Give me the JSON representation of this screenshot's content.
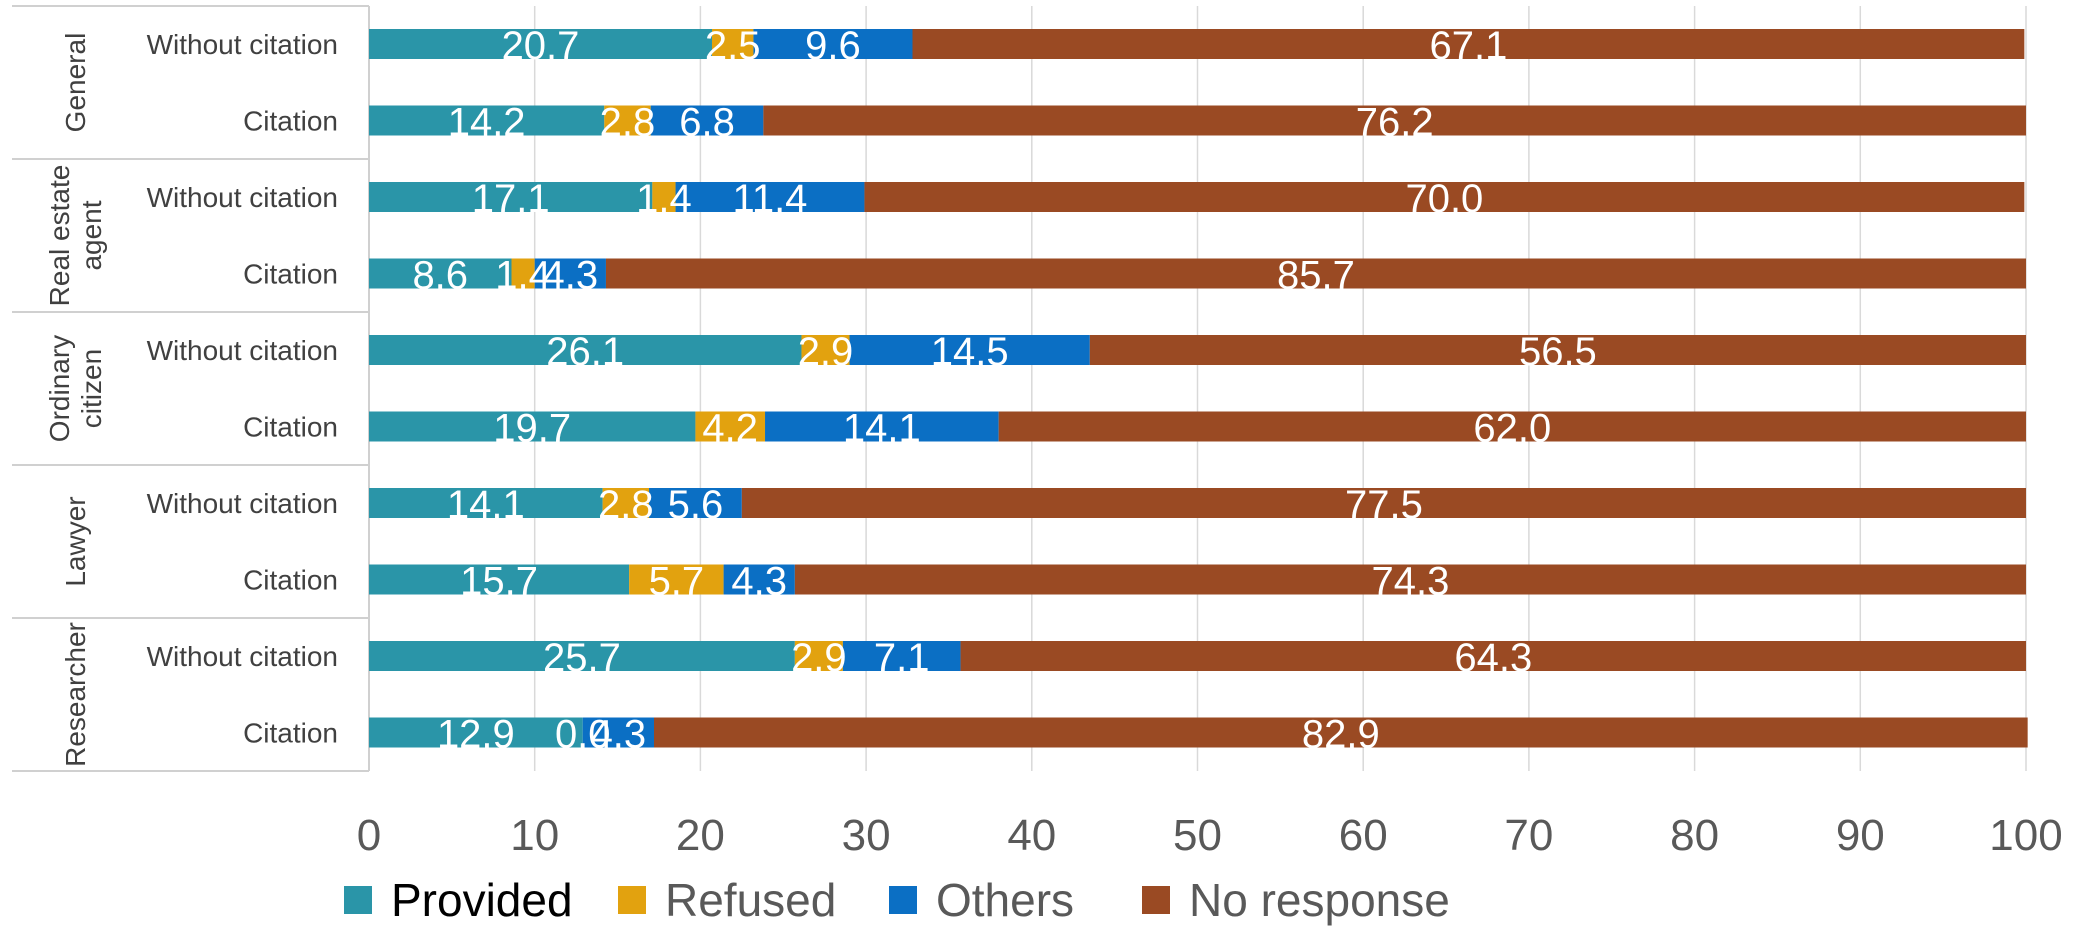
{
  "chart_data": {
    "type": "bar",
    "orientation": "horizontal",
    "stacked": true,
    "title": "",
    "xlabel": "",
    "ylabel": "",
    "xlim": [
      0,
      100
    ],
    "x_ticks": [
      "0",
      "10",
      "20",
      "30",
      "40",
      "50",
      "60",
      "70",
      "80",
      "90",
      "100"
    ],
    "grid": "vertical",
    "legend_position": "bottom",
    "groups": [
      {
        "name": "General",
        "label_lines": [
          "General"
        ],
        "rows": [
          "Without citation",
          "Citation"
        ]
      },
      {
        "name": "Real estate agent",
        "label_lines": [
          "Real estate",
          "agent"
        ],
        "rows": [
          "Without citation",
          "Citation"
        ]
      },
      {
        "name": "Ordinary citizen",
        "label_lines": [
          "Ordinary",
          "citizen"
        ],
        "rows": [
          "Without citation",
          "Citation"
        ]
      },
      {
        "name": "Lawyer",
        "label_lines": [
          "Lawyer"
        ],
        "rows": [
          "Without citation",
          "Citation"
        ]
      },
      {
        "name": "Researcher",
        "label_lines": [
          "Researcher"
        ],
        "rows": [
          "Without citation",
          "Citation"
        ]
      }
    ],
    "series": [
      {
        "name": "Provided",
        "color": "#2a95a8",
        "legend_text_color": "#000000",
        "values": [
          20.7,
          14.2,
          17.1,
          8.6,
          26.1,
          19.7,
          14.1,
          15.7,
          25.7,
          12.9
        ]
      },
      {
        "name": "Refused",
        "color": "#e2a20f",
        "legend_text_color": "#595959",
        "values": [
          2.5,
          2.8,
          1.4,
          1.4,
          2.9,
          4.2,
          2.8,
          5.7,
          2.9,
          0.0
        ]
      },
      {
        "name": "Others",
        "color": "#0b6fc4",
        "legend_text_color": "#595959",
        "values": [
          9.6,
          6.8,
          11.4,
          4.3,
          14.5,
          14.1,
          5.6,
          4.3,
          7.1,
          4.3
        ]
      },
      {
        "name": "No response",
        "color": "#9a4a23",
        "legend_text_color": "#595959",
        "values": [
          67.1,
          76.2,
          70.0,
          85.7,
          56.5,
          62.0,
          77.5,
          74.3,
          64.3,
          82.9
        ]
      }
    ]
  }
}
